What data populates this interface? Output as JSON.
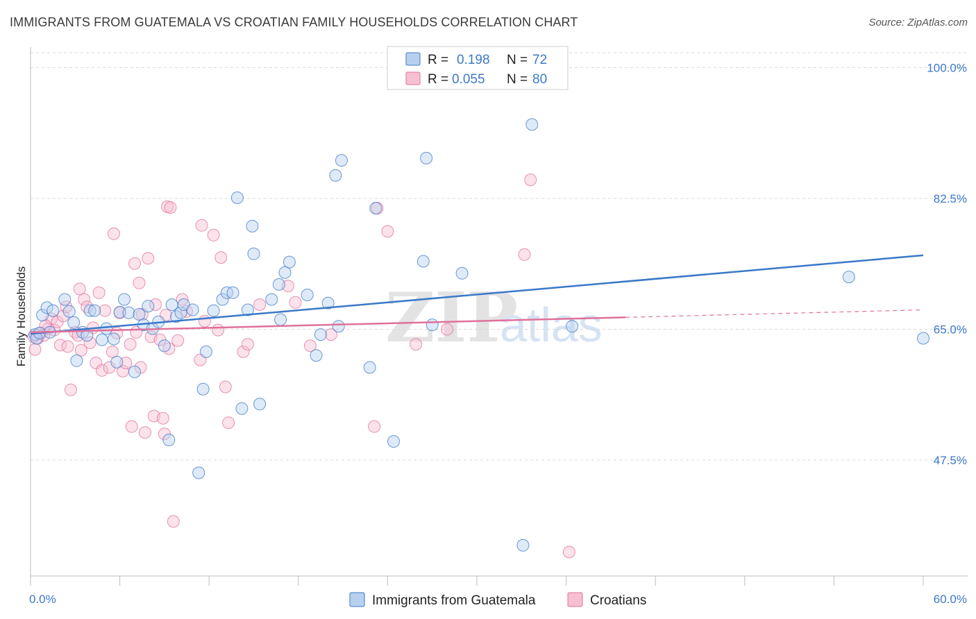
{
  "header": {
    "title": "IMMIGRANTS FROM GUATEMALA VS CROATIAN FAMILY HOUSEHOLDS CORRELATION CHART",
    "source": "Source: ZipAtlas.com"
  },
  "legend_top": {
    "rows": [
      {
        "r_label": "R =",
        "r_value": "0.198",
        "n_label": "N =",
        "n_value": "72"
      },
      {
        "r_label": "R =",
        "r_value": "0.055",
        "n_label": "N =",
        "n_value": "80"
      }
    ]
  },
  "legend_bottom": {
    "items": [
      "Immigrants from Guatemala",
      "Croatians"
    ]
  },
  "watermark": {
    "zip": "ZIP",
    "atlas": "atlas"
  },
  "colors": {
    "blue": "#3a78c8",
    "blue_fill": "#b8d0f0",
    "pink": "#e0709a",
    "pink_fill": "#f6bfd2",
    "grid": "#d8d8d8",
    "tick_text": "#3c78c8"
  },
  "chart_data": {
    "type": "scatter",
    "title": "IMMIGRANTS FROM GUATEMALA VS CROATIAN FAMILY HOUSEHOLDS CORRELATION CHART",
    "xlabel": "",
    "ylabel": "Family Households",
    "xlim": [
      0,
      60
    ],
    "ylim": [
      32,
      102
    ],
    "x_tick_labels": [
      "0.0%",
      "60.0%"
    ],
    "y_ticks": [
      47.5,
      65.0,
      82.5,
      100.0
    ],
    "y_tick_labels": [
      "47.5%",
      "65.0%",
      "82.5%",
      "100.0%"
    ],
    "grid": true,
    "legend_position": "top-center",
    "series": [
      {
        "name": "Immigrants from Guatemala",
        "color": "#3a78c8",
        "r": 0.198,
        "n": 72,
        "trend": {
          "x": [
            0,
            60
          ],
          "y": [
            64.4,
            74.9
          ],
          "dashed_from": null
        },
        "points": [
          [
            0.3,
            64.3
          ],
          [
            0.4,
            63.8
          ],
          [
            0.6,
            64.5
          ],
          [
            0.8,
            66.9
          ],
          [
            1.1,
            67.9
          ],
          [
            1.3,
            64.6
          ],
          [
            1.5,
            67.5
          ],
          [
            2.3,
            69.0
          ],
          [
            2.6,
            67.4
          ],
          [
            2.9,
            65.9
          ],
          [
            3.1,
            60.8
          ],
          [
            3.5,
            64.6
          ],
          [
            3.8,
            64.2
          ],
          [
            4.0,
            67.5
          ],
          [
            4.3,
            67.5
          ],
          [
            4.8,
            63.6
          ],
          [
            5.1,
            65.1
          ],
          [
            5.6,
            63.7
          ],
          [
            5.8,
            60.6
          ],
          [
            6.0,
            67.3
          ],
          [
            6.3,
            69.0
          ],
          [
            6.6,
            67.2
          ],
          [
            7.0,
            59.3
          ],
          [
            7.3,
            67.0
          ],
          [
            7.6,
            65.6
          ],
          [
            7.9,
            68.1
          ],
          [
            8.2,
            65.1
          ],
          [
            8.6,
            66.0
          ],
          [
            9.0,
            62.8
          ],
          [
            9.3,
            50.2
          ],
          [
            9.5,
            68.3
          ],
          [
            9.8,
            66.7
          ],
          [
            10.1,
            67.2
          ],
          [
            10.3,
            68.3
          ],
          [
            10.9,
            67.6
          ],
          [
            11.3,
            45.8
          ],
          [
            11.6,
            57.0
          ],
          [
            11.8,
            62.0
          ],
          [
            12.3,
            67.5
          ],
          [
            12.9,
            69.0
          ],
          [
            13.2,
            69.9
          ],
          [
            13.6,
            69.9
          ],
          [
            13.9,
            82.6
          ],
          [
            14.2,
            54.4
          ],
          [
            14.6,
            67.6
          ],
          [
            14.9,
            78.8
          ],
          [
            15.0,
            75.1
          ],
          [
            15.4,
            55.0
          ],
          [
            16.2,
            69.0
          ],
          [
            16.7,
            71.0
          ],
          [
            16.8,
            66.3
          ],
          [
            17.1,
            72.6
          ],
          [
            17.4,
            74.0
          ],
          [
            18.6,
            69.6
          ],
          [
            19.2,
            61.5
          ],
          [
            19.5,
            64.3
          ],
          [
            20.0,
            68.5
          ],
          [
            20.5,
            85.6
          ],
          [
            20.7,
            65.4
          ],
          [
            20.9,
            87.6
          ],
          [
            22.8,
            59.9
          ],
          [
            23.2,
            81.2
          ],
          [
            24.4,
            50.0
          ],
          [
            26.4,
            74.1
          ],
          [
            26.6,
            87.9
          ],
          [
            27.0,
            65.6
          ],
          [
            29.0,
            72.5
          ],
          [
            33.1,
            36.1
          ],
          [
            33.7,
            92.4
          ],
          [
            36.4,
            65.4
          ],
          [
            55.0,
            72.0
          ],
          [
            60.0,
            63.8
          ]
        ]
      },
      {
        "name": "Croatians",
        "color": "#e0709a",
        "r": 0.055,
        "n": 80,
        "trend": {
          "x": [
            0,
            60
          ],
          "y": [
            64.6,
            67.6
          ],
          "dashed_from": 40
        },
        "points": [
          [
            0.3,
            62.3
          ],
          [
            0.5,
            63.8
          ],
          [
            0.7,
            64.5
          ],
          [
            0.9,
            64.2
          ],
          [
            1.2,
            65.1
          ],
          [
            1.4,
            66.4
          ],
          [
            1.6,
            64.9
          ],
          [
            1.8,
            66.0
          ],
          [
            2.0,
            62.9
          ],
          [
            2.2,
            66.8
          ],
          [
            2.4,
            68.0
          ],
          [
            2.5,
            62.7
          ],
          [
            2.7,
            56.9
          ],
          [
            3.0,
            64.6
          ],
          [
            3.2,
            64.2
          ],
          [
            3.3,
            70.4
          ],
          [
            3.4,
            62.2
          ],
          [
            3.6,
            69.0
          ],
          [
            3.8,
            68.0
          ],
          [
            4.0,
            63.2
          ],
          [
            4.2,
            65.2
          ],
          [
            4.4,
            60.5
          ],
          [
            4.6,
            69.9
          ],
          [
            4.8,
            59.5
          ],
          [
            5.0,
            67.5
          ],
          [
            5.3,
            59.9
          ],
          [
            5.5,
            62.0
          ],
          [
            5.6,
            77.8
          ],
          [
            5.8,
            64.5
          ],
          [
            6.0,
            67.2
          ],
          [
            6.2,
            59.4
          ],
          [
            6.4,
            60.5
          ],
          [
            6.7,
            63.0
          ],
          [
            6.8,
            52.0
          ],
          [
            7.0,
            73.8
          ],
          [
            7.1,
            64.6
          ],
          [
            7.3,
            71.2
          ],
          [
            7.4,
            59.9
          ],
          [
            7.5,
            67.0
          ],
          [
            7.7,
            51.2
          ],
          [
            7.9,
            74.5
          ],
          [
            8.1,
            64.0
          ],
          [
            8.3,
            53.4
          ],
          [
            8.4,
            68.3
          ],
          [
            8.7,
            63.6
          ],
          [
            8.9,
            53.1
          ],
          [
            9.0,
            51.0
          ],
          [
            9.1,
            66.9
          ],
          [
            9.2,
            81.4
          ],
          [
            9.3,
            62.4
          ],
          [
            9.4,
            81.3
          ],
          [
            9.6,
            39.3
          ],
          [
            9.9,
            63.5
          ],
          [
            10.2,
            69.0
          ],
          [
            10.5,
            67.4
          ],
          [
            11.4,
            60.9
          ],
          [
            11.5,
            78.9
          ],
          [
            11.7,
            66.1
          ],
          [
            12.3,
            77.6
          ],
          [
            12.6,
            64.9
          ],
          [
            12.8,
            74.6
          ],
          [
            13.1,
            57.3
          ],
          [
            13.3,
            52.5
          ],
          [
            14.3,
            62.0
          ],
          [
            14.6,
            63.0
          ],
          [
            15.4,
            68.3
          ],
          [
            17.3,
            70.8
          ],
          [
            17.8,
            68.6
          ],
          [
            18.8,
            62.8
          ],
          [
            20.2,
            64.3
          ],
          [
            23.1,
            52.0
          ],
          [
            23.3,
            81.2
          ],
          [
            24.0,
            78.1
          ],
          [
            25.9,
            63.0
          ],
          [
            28.0,
            65.0
          ],
          [
            33.2,
            75.0
          ],
          [
            33.6,
            85.0
          ],
          [
            36.2,
            35.2
          ],
          [
            0.2,
            64.0
          ],
          [
            1.0,
            65.5
          ]
        ]
      }
    ]
  }
}
